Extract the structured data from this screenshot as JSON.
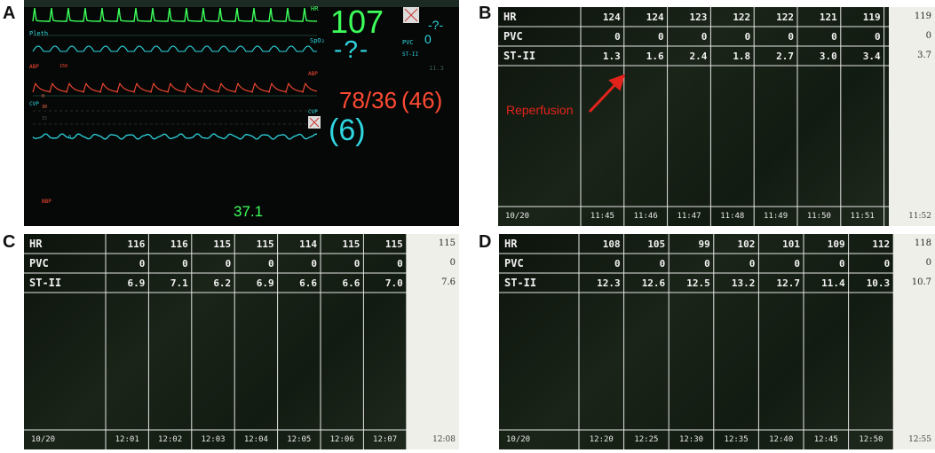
{
  "panels": {
    "a": {
      "label": "A",
      "trace_labels": {
        "pleth": "Pleth",
        "abp": "ABP",
        "abp_scale": "150",
        "cvp": "CVP",
        "cvp_scale": "30",
        "cvp_scale2": "15",
        "cvp_zero": "0",
        "abp_zero": "0"
      },
      "right_labels": {
        "hr": "HR",
        "spo2": "SpO₂",
        "abp": "ABP",
        "cvp": "CVP",
        "pvc": "PVC",
        "st": "ST-II"
      },
      "hr_value": "107",
      "spo2_value": "-?-",
      "pvc_value": "0",
      "st_value": "-?-",
      "st_small": "11.3",
      "abp_value": "78/36",
      "abp_mean": "(46)",
      "cvp_value": "(6)",
      "temp_value": "37.1",
      "bottom_left": "NBP",
      "colors": {
        "green": "#3dff5a",
        "cyan": "#2fd6e0",
        "red": "#ff4a33"
      }
    },
    "b": {
      "label": "B",
      "rows": [
        "HR",
        "PVC",
        "ST-II"
      ],
      "hr": [
        "124",
        "124",
        "123",
        "122",
        "122",
        "121",
        "119"
      ],
      "pvc": [
        "0",
        "0",
        "0",
        "0",
        "0",
        "0",
        "0"
      ],
      "st": [
        "1.3",
        "1.6",
        "2.4",
        "1.8",
        "2.7",
        "3.0",
        "3.4"
      ],
      "times": [
        "11:45",
        "11:46",
        "11:47",
        "11:48",
        "11:49",
        "11:50",
        "11:51"
      ],
      "extra": {
        "hr": "119",
        "pvc": "0",
        "st": "3.7",
        "time": "11:52"
      },
      "date": "10/20",
      "annotation": "Reperfusion",
      "annotation_color": "#e3231b"
    },
    "c": {
      "label": "C",
      "rows": [
        "HR",
        "PVC",
        "ST-II"
      ],
      "hr": [
        "116",
        "116",
        "115",
        "115",
        "114",
        "115",
        "115"
      ],
      "pvc": [
        "0",
        "0",
        "0",
        "0",
        "0",
        "0",
        "0"
      ],
      "st": [
        "6.9",
        "7.1",
        "6.2",
        "6.9",
        "6.6",
        "6.6",
        "7.0"
      ],
      "times": [
        "12:01",
        "12:02",
        "12:03",
        "12:04",
        "12:05",
        "12:06",
        "12:07"
      ],
      "extra": {
        "hr": "115",
        "pvc": "0",
        "st": "7.6",
        "time": "12:08"
      },
      "date": "10/20"
    },
    "d": {
      "label": "D",
      "rows": [
        "HR",
        "PVC",
        "ST-II"
      ],
      "hr": [
        "108",
        "105",
        "99",
        "102",
        "101",
        "109",
        "112"
      ],
      "pvc": [
        "0",
        "0",
        "0",
        "0",
        "0",
        "0",
        "0"
      ],
      "st": [
        "12.3",
        "12.6",
        "12.5",
        "13.2",
        "12.7",
        "11.4",
        "10.3"
      ],
      "times": [
        "12:20",
        "12:25",
        "12:30",
        "12:35",
        "12:40",
        "12:45",
        "12:50"
      ],
      "extra": {
        "hr": "118",
        "pvc": "0",
        "st": "10.7",
        "time": "12:55"
      },
      "date": "10/20"
    }
  }
}
